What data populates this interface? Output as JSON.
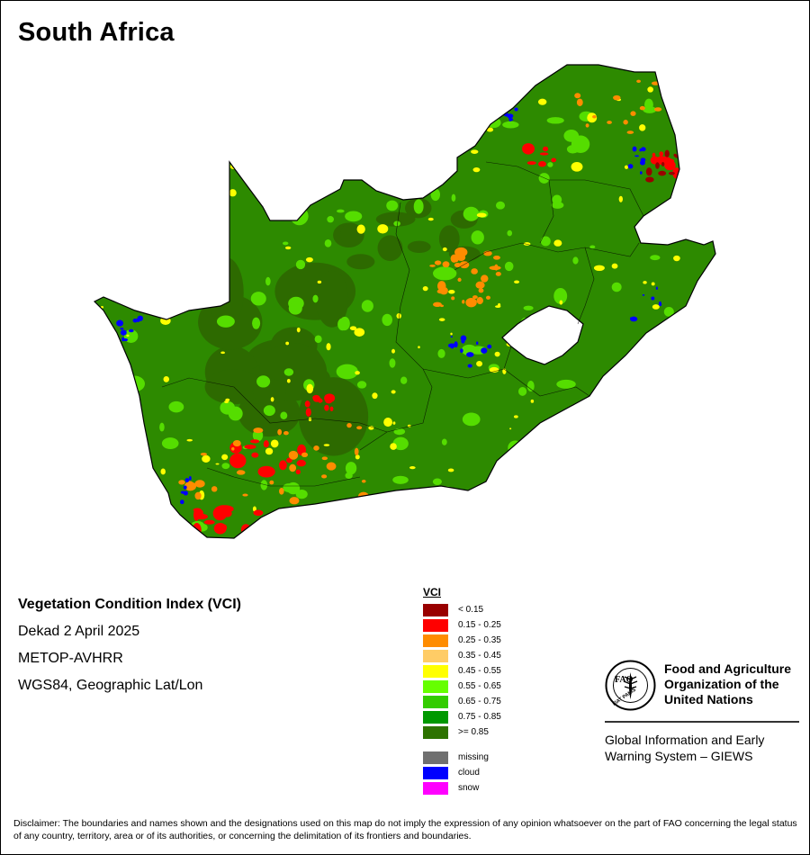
{
  "title": "South Africa",
  "info": {
    "heading": "Vegetation Condition Index (VCI)",
    "period": "Dekad 2 April 2025",
    "sensor": "METOP-AVHRR",
    "projection": "WGS84, Geographic Lat/Lon"
  },
  "legend": {
    "title": "VCI",
    "classes": [
      {
        "label": "< 0.15",
        "color": "#990000"
      },
      {
        "label": "0.15 - 0.25",
        "color": "#ff0000"
      },
      {
        "label": "0.25 - 0.35",
        "color": "#ff8c00"
      },
      {
        "label": "0.35 - 0.45",
        "color": "#ffcc66"
      },
      {
        "label": "0.45 - 0.55",
        "color": "#ffff00"
      },
      {
        "label": "0.55 - 0.65",
        "color": "#66ff00"
      },
      {
        "label": "0.65 - 0.75",
        "color": "#33cc00"
      },
      {
        "label": "0.75 - 0.85",
        "color": "#009900"
      },
      {
        "label": ">= 0.85",
        "color": "#2d7300"
      }
    ],
    "special": [
      {
        "label": "missing",
        "color": "#707070"
      },
      {
        "label": "cloud",
        "color": "#0000ff"
      },
      {
        "label": "snow",
        "color": "#ff00ff"
      }
    ]
  },
  "organization": {
    "logo_text": "FAO",
    "logo_motto": "FIAT PANIS",
    "name_line1": "Food and Agriculture",
    "name_line2": "Organization of the",
    "name_line3": "United Nations",
    "system_line1": "Global Information and Early",
    "system_line2": "Warning System – GIEWS"
  },
  "disclaimer": "Disclaimer: The boundaries and names shown and the designations used on this map do not imply the expression of any opinion whatsoever on the part of FAO concerning the legal status of any country, territory, area or of its authorities, or concerning the delimitation of its frontiers and boundaries.",
  "map_colors": {
    "base": "#2d8a00",
    "dark": "#2d6a00",
    "light": "#55dd00",
    "yellow": "#ffff00",
    "orange": "#ff8c00",
    "red": "#ff0000",
    "darkred": "#990000",
    "cloud": "#0000ff",
    "border": "#000000"
  }
}
